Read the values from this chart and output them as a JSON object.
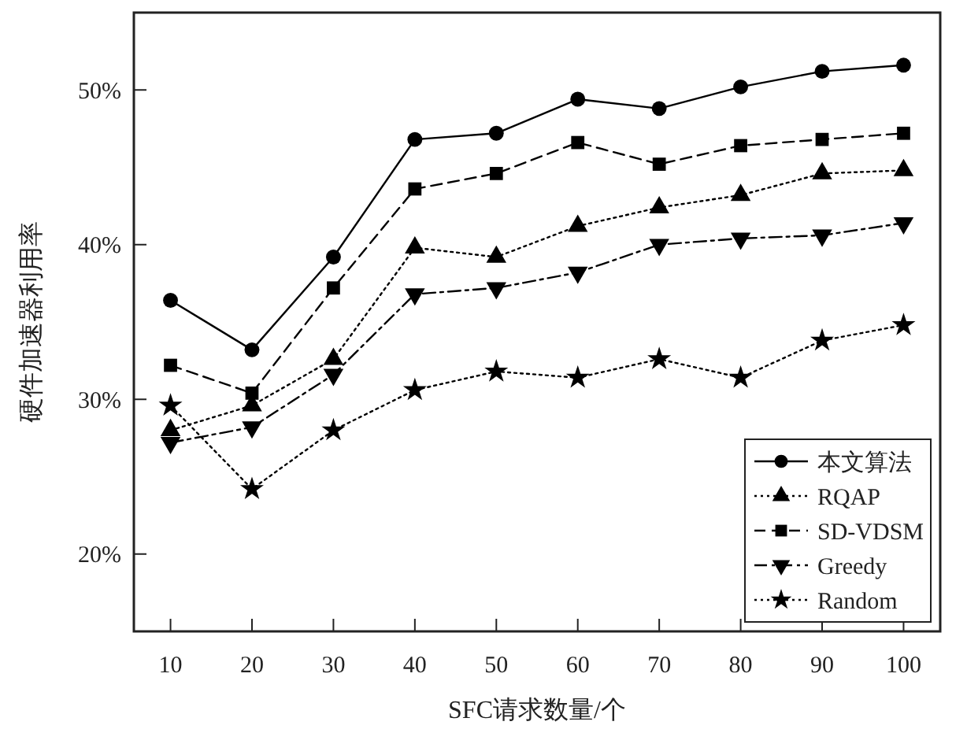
{
  "chart_data": {
    "type": "line",
    "xlabel": "SFC请求数量/个",
    "ylabel": "硬件加速器利用率",
    "x": [
      10,
      20,
      30,
      40,
      50,
      60,
      70,
      80,
      90,
      100
    ],
    "xlim": [
      5.5,
      104.5
    ],
    "xticks": [
      10,
      20,
      30,
      40,
      50,
      60,
      70,
      80,
      90,
      100
    ],
    "ylim": [
      15,
      55
    ],
    "yticks": [
      {
        "value": 20,
        "label": "20%"
      },
      {
        "value": 30,
        "label": "30%"
      },
      {
        "value": 40,
        "label": "40%"
      },
      {
        "value": 50,
        "label": "50%"
      }
    ],
    "grid": false,
    "legend": "bottom right",
    "series": [
      {
        "name": "本文算法",
        "color": "#000000",
        "marker": "circle",
        "line_style": "solid",
        "values": [
          36.4,
          33.2,
          39.2,
          46.8,
          47.2,
          49.4,
          48.8,
          50.2,
          51.2,
          51.6
        ]
      },
      {
        "name": "RQAP",
        "color": "#000000",
        "marker": "triangle",
        "line_style": "dotted",
        "values": [
          28.0,
          29.6,
          32.6,
          39.8,
          39.2,
          41.2,
          42.4,
          43.2,
          44.6,
          44.8
        ]
      },
      {
        "name": "SD-VDSM",
        "color": "#000000",
        "marker": "square",
        "line_style": "dashed",
        "values": [
          32.2,
          30.4,
          37.2,
          43.6,
          44.6,
          46.6,
          45.2,
          46.4,
          46.8,
          47.2
        ]
      },
      {
        "name": "Greedy",
        "color": "#000000",
        "marker": "triangle-down",
        "line_style": "dashdot",
        "values": [
          27.2,
          28.2,
          31.6,
          36.8,
          37.2,
          38.2,
          40.0,
          40.4,
          40.6,
          41.4
        ]
      },
      {
        "name": "Random",
        "color": "#000000",
        "marker": "star",
        "line_style": "dotted",
        "values": [
          29.6,
          24.2,
          28.0,
          30.6,
          31.8,
          31.4,
          32.6,
          31.4,
          33.8,
          34.8
        ]
      }
    ]
  }
}
